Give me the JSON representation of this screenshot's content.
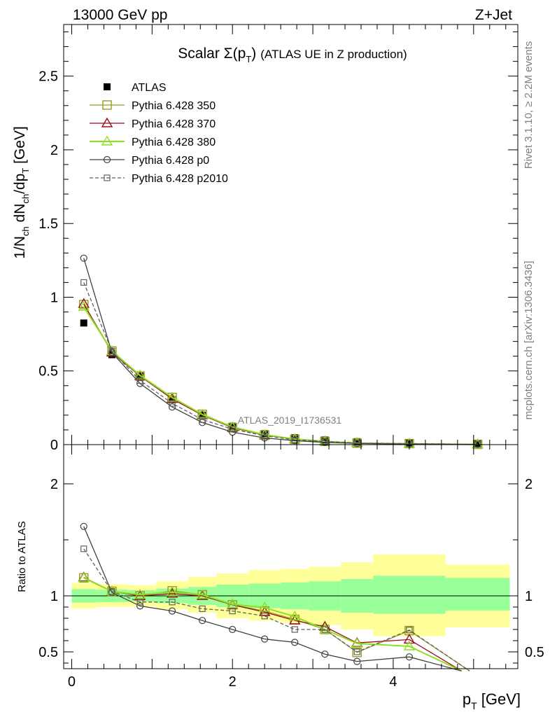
{
  "header": {
    "left": "13000 GeV pp",
    "right": "Z+Jet"
  },
  "plot_title": "Scalar Σ(p_T) (ATLAS UE in Z production)",
  "side_labels": {
    "rivet": "Rivet 3.1.10, ≥ 2.2M events",
    "mcplots": "mcplots.cern.ch [arXiv:1306.3436]"
  },
  "watermark": "ATLAS_2019_I1736531",
  "colors": {
    "ATLAS": "#000000",
    "p350": "#9a9a22",
    "p370": "#9b0b1e",
    "p380": "#8ce020",
    "p0": "#404040",
    "p2010": "#606060",
    "band_yellow": "#ffff99",
    "band_green": "#99ff99"
  },
  "legend": [
    {
      "key": "ATLAS",
      "label": "ATLAS",
      "marker": "filled-square",
      "dash": ""
    },
    {
      "key": "p350",
      "label": "Pythia 6.428 350",
      "marker": "open-square",
      "dash": ""
    },
    {
      "key": "p370",
      "label": "Pythia 6.428 370",
      "marker": "open-triangle",
      "dash": ""
    },
    {
      "key": "p380",
      "label": "Pythia 6.428 380",
      "marker": "open-triangle",
      "dash": ""
    },
    {
      "key": "p0",
      "label": "Pythia 6.428 p0",
      "marker": "open-circle",
      "dash": ""
    },
    {
      "key": "p2010",
      "label": "Pythia 6.428 p2010",
      "marker": "open-square-small",
      "dash": "5,3"
    }
  ],
  "chart_data": [
    {
      "type": "line",
      "panel": "main",
      "ylabel": "1/N_ch dN_ch/dp_T [GeV]",
      "ylim": [
        0,
        2.85
      ],
      "xlim": [
        -0.1,
        5.55
      ],
      "yticks": [
        {
          "v": 0,
          "label": "0"
        },
        {
          "v": 0.5,
          "label": "0.5"
        },
        {
          "v": 1,
          "label": "1"
        },
        {
          "v": 1.5,
          "label": "1.5"
        },
        {
          "v": 2,
          "label": "2"
        },
        {
          "v": 2.5,
          "label": "2.5"
        }
      ],
      "x": [
        0.15,
        0.5,
        0.85,
        1.25,
        1.625,
        2.0,
        2.4,
        2.775,
        3.15,
        3.55,
        4.2,
        5.05
      ],
      "series": [
        {
          "name": "ATLAS",
          "key": "ATLAS",
          "values": [
            0.825,
            0.61,
            0.465,
            0.305,
            0.2,
            0.125,
            0.075,
            0.047,
            0.032,
            0.02,
            0.01,
            0.004
          ]
        },
        {
          "name": "Pythia 6.428 350",
          "key": "p350",
          "values": [
            0.95,
            0.635,
            0.465,
            0.32,
            0.205,
            0.115,
            0.065,
            0.036,
            0.022,
            0.01,
            0.007,
            0.002
          ]
        },
        {
          "name": "Pythia 6.428 370",
          "key": "p370",
          "values": [
            0.955,
            0.625,
            0.465,
            0.31,
            0.2,
            0.115,
            0.064,
            0.037,
            0.023,
            0.012,
            0.006,
            0.0015
          ]
        },
        {
          "name": "Pythia 6.428 380",
          "key": "p380",
          "values": [
            0.935,
            0.635,
            0.47,
            0.32,
            0.205,
            0.12,
            0.067,
            0.038,
            0.022,
            0.011,
            0.0055,
            0.0012
          ]
        },
        {
          "name": "Pythia 6.428 p0",
          "key": "p0",
          "values": [
            1.265,
            0.625,
            0.415,
            0.255,
            0.15,
            0.085,
            0.045,
            0.027,
            0.015,
            0.008,
            0.004,
            0.001
          ]
        },
        {
          "name": "Pythia 6.428 p2010",
          "key": "p2010",
          "values": [
            1.1,
            0.635,
            0.435,
            0.28,
            0.17,
            0.105,
            0.06,
            0.033,
            0.022,
            0.01,
            0.007,
            0.002
          ]
        }
      ]
    },
    {
      "type": "line",
      "panel": "ratio",
      "ylabel": "Ratio to ATLAS",
      "xlabel": "p_T [GeV]",
      "ylim": [
        0.35,
        2.35
      ],
      "xlim": [
        -0.1,
        5.55
      ],
      "yticks": [
        {
          "v": 0.5,
          "label": "0.5"
        },
        {
          "v": 1,
          "label": "1"
        },
        {
          "v": 2,
          "label": "2"
        }
      ],
      "xticks": [
        {
          "v": 0,
          "label": "0"
        },
        {
          "v": 2,
          "label": "2"
        },
        {
          "v": 4,
          "label": "4"
        }
      ],
      "bands": {
        "edges": [
          0,
          0.3,
          0.7,
          1.05,
          1.45,
          1.8,
          2.2,
          2.6,
          2.95,
          3.35,
          3.75,
          4.65,
          5.45
        ],
        "yellow": [
          [
            0.885,
            1.115
          ],
          [
            0.9,
            1.105
          ],
          [
            0.905,
            1.095
          ],
          [
            0.88,
            1.13
          ],
          [
            0.85,
            1.17
          ],
          [
            0.8,
            1.2
          ],
          [
            0.78,
            1.23
          ],
          [
            0.76,
            1.24
          ],
          [
            0.74,
            1.26
          ],
          [
            0.7,
            1.3
          ],
          [
            0.64,
            1.37
          ],
          [
            0.72,
            1.28
          ]
        ],
        "green": [
          [
            0.94,
            1.06
          ],
          [
            0.945,
            1.055
          ],
          [
            0.95,
            1.05
          ],
          [
            0.935,
            1.065
          ],
          [
            0.92,
            1.08
          ],
          [
            0.9,
            1.1
          ],
          [
            0.89,
            1.11
          ],
          [
            0.88,
            1.12
          ],
          [
            0.87,
            1.13
          ],
          [
            0.85,
            1.15
          ],
          [
            0.84,
            1.18
          ],
          [
            0.87,
            1.16
          ]
        ]
      },
      "x": [
        0.15,
        0.5,
        0.85,
        1.25,
        1.625,
        2.0,
        2.4,
        2.775,
        3.15,
        3.55,
        4.2,
        4.85,
        4.95
      ],
      "series": [
        {
          "name": "Pythia 6.428 350",
          "key": "p350",
          "values": [
            1.16,
            1.04,
            1.0,
            1.045,
            1.01,
            0.92,
            0.865,
            0.79,
            0.7,
            0.495,
            0.69,
            null,
            0.33
          ]
        },
        {
          "name": "Pythia 6.428 370",
          "key": "p370",
          "values": [
            1.165,
            1.04,
            1.0,
            1.02,
            1.0,
            0.92,
            0.855,
            0.78,
            0.725,
            0.58,
            0.61,
            0.33,
            null
          ]
        },
        {
          "name": "Pythia 6.428 380",
          "key": "p380",
          "values": [
            1.16,
            1.04,
            1.01,
            1.035,
            1.01,
            0.925,
            0.895,
            0.815,
            0.7,
            0.575,
            0.55,
            0.33,
            null
          ]
        },
        {
          "name": "Pythia 6.428 p0",
          "key": "p0",
          "values": [
            1.62,
            1.03,
            0.91,
            0.865,
            0.78,
            0.7,
            0.615,
            0.585,
            0.48,
            0.415,
            0.455,
            0.33,
            null
          ]
        },
        {
          "name": "Pythia 6.428 p2010",
          "key": "p2010",
          "values": [
            1.42,
            1.04,
            0.945,
            0.945,
            0.885,
            0.865,
            0.82,
            0.7,
            0.7,
            0.5,
            0.695,
            null,
            0.33
          ]
        }
      ]
    }
  ]
}
